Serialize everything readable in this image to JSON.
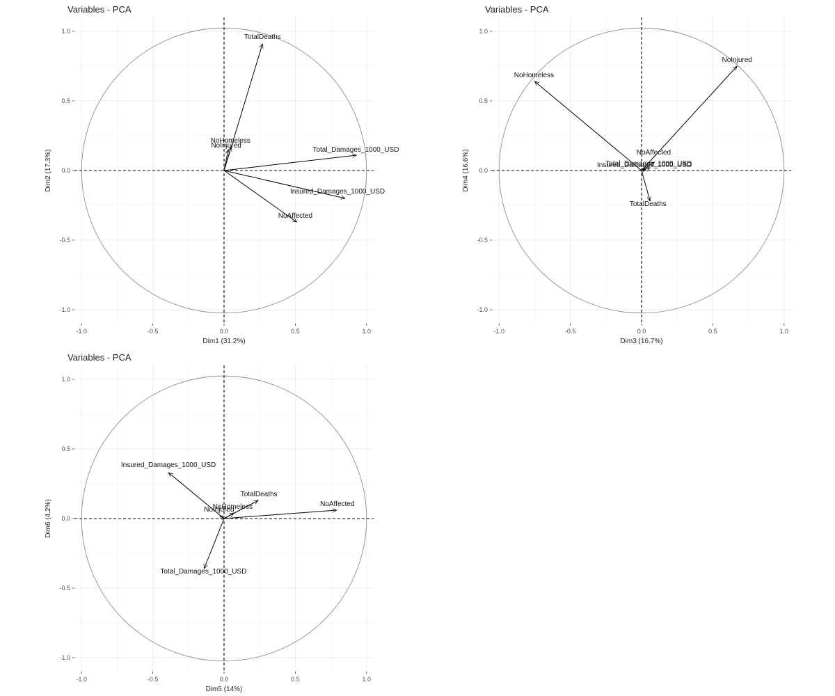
{
  "chart_data": [
    {
      "type": "scatter",
      "title": "Variables - PCA",
      "xlabel": "Dim1 (31.2%)",
      "ylabel": "Dim2 (17.3%)",
      "xlim": [
        -1.05,
        1.05
      ],
      "ylim": [
        -1.1,
        1.1
      ],
      "xticks": [
        "-1.0",
        "-0.5",
        "0.0",
        "0.5",
        "1.0"
      ],
      "yticks": [
        "-1.0",
        "-0.5",
        "0.0",
        "0.5",
        "1.0"
      ],
      "grid": true,
      "variables": [
        {
          "name": "TotalDeaths",
          "x": 0.27,
          "y": 0.91
        },
        {
          "name": "NoHomeless",
          "x": 0.05,
          "y": 0.17
        },
        {
          "name": "NoInjured",
          "x": 0.03,
          "y": 0.15
        },
        {
          "name": "Total_Damages_1000_USD",
          "x": 0.93,
          "y": 0.11
        },
        {
          "name": "Insured_Damages_1000_USD",
          "x": 0.85,
          "y": -0.2
        },
        {
          "name": "NoAffected",
          "x": 0.51,
          "y": -0.37
        }
      ]
    },
    {
      "type": "scatter",
      "title": "Variables - PCA",
      "xlabel": "Dim3 (16.7%)",
      "ylabel": "Dim4 (16.6%)",
      "xlim": [
        -1.05,
        1.05
      ],
      "ylim": [
        -1.1,
        1.1
      ],
      "xticks": [
        "-1.0",
        "-0.5",
        "0.0",
        "0.5",
        "1.0"
      ],
      "yticks": [
        "-1.0",
        "-0.5",
        "0.0",
        "0.5",
        "1.0"
      ],
      "grid": true,
      "variables": [
        {
          "name": "NoInjured",
          "x": 0.67,
          "y": 0.75
        },
        {
          "name": "NoHomeless",
          "x": -0.75,
          "y": 0.64
        },
        {
          "name": "NoAffected",
          "x": 0.09,
          "y": 0.06
        },
        {
          "name": "Total_Damages_1000_USD",
          "x": 0.06,
          "y": 0.02
        },
        {
          "name": "Insured_Damages_1000_USD",
          "x": 0.03,
          "y": 0.01
        },
        {
          "name": "TotalDeaths",
          "x": 0.06,
          "y": -0.22
        }
      ]
    },
    {
      "type": "scatter",
      "title": "Variables - PCA",
      "xlabel": "Dim5 (14%)",
      "ylabel": "Dim6 (4.2%)",
      "xlim": [
        -1.05,
        1.05
      ],
      "ylim": [
        -1.1,
        1.1
      ],
      "xticks": [
        "-1.0",
        "-0.5",
        "0.0",
        "0.5",
        "1.0"
      ],
      "yticks": [
        "-1.0",
        "-0.5",
        "0.0",
        "0.5",
        "1.0"
      ],
      "grid": true,
      "variables": [
        {
          "name": "Insured_Damages_1000_USD",
          "x": -0.39,
          "y": 0.33
        },
        {
          "name": "TotalDeaths",
          "x": 0.24,
          "y": 0.13
        },
        {
          "name": "NoAffected",
          "x": 0.79,
          "y": 0.06
        },
        {
          "name": "NoHomeless",
          "x": 0.07,
          "y": 0.04
        },
        {
          "name": "NoInjured",
          "x": -0.03,
          "y": 0.02
        },
        {
          "name": "Total_Damages_1000_USD",
          "x": -0.14,
          "y": -0.36
        }
      ]
    }
  ]
}
